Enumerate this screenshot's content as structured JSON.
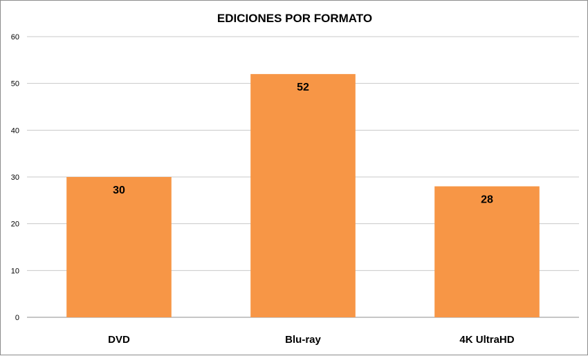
{
  "chart_data": {
    "type": "bar",
    "title": "EDICIONES POR FORMATO",
    "xlabel": "",
    "ylabel": "",
    "categories": [
      "DVD",
      "Blu-ray",
      "4K UltraHD"
    ],
    "values": [
      30,
      52,
      28
    ],
    "data_labels": [
      "30",
      "52",
      "28"
    ],
    "ylim": [
      0,
      60
    ],
    "yticks": [
      0,
      10,
      20,
      30,
      40,
      50,
      60
    ],
    "ytick_labels": [
      "0",
      "10",
      "20",
      "30",
      "40",
      "50",
      "60"
    ],
    "grid": true,
    "legend": "none",
    "bar_color": "#F79646"
  }
}
